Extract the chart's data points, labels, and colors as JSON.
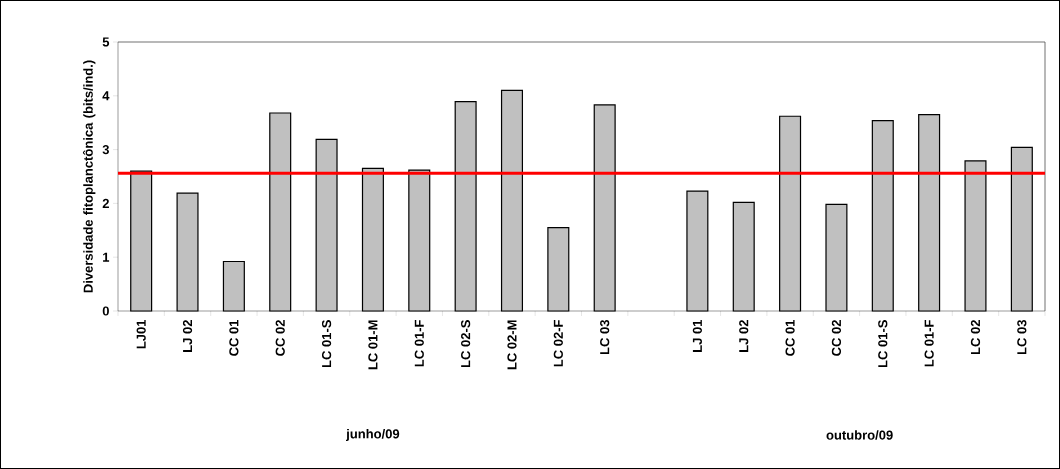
{
  "chart_data": {
    "type": "bar",
    "ylabel": "Diversidade fitoplanctônica (bits/ind.)",
    "categories": [
      "LJ01",
      "LJ 02",
      "CC 01",
      "CC 02",
      "LC 01-S",
      "LC 01-M",
      "LC 01-F",
      "LC 02-S",
      "LC 02-M",
      "LC 02-F",
      "LC 03",
      null,
      "LJ 01",
      "LJ 02",
      "CC 01",
      "CC 02",
      "LC 01-S",
      "LC 01-F",
      "LC 02",
      "LC 03"
    ],
    "values": [
      2.6,
      2.19,
      0.92,
      3.68,
      3.19,
      2.65,
      2.62,
      3.89,
      4.1,
      1.55,
      3.83,
      null,
      2.23,
      2.02,
      3.62,
      1.98,
      3.54,
      3.65,
      2.79,
      3.04
    ],
    "color": "#c0c0c0",
    "ylim": [
      0,
      5
    ],
    "yticks": [
      0,
      1,
      2,
      3,
      4,
      5
    ],
    "ref_lines": [
      {
        "axis": "y",
        "value": 2.56,
        "color": "#ff0000"
      }
    ],
    "annotations": [
      "junho/09",
      "outubro/09"
    ],
    "grid": false
  }
}
